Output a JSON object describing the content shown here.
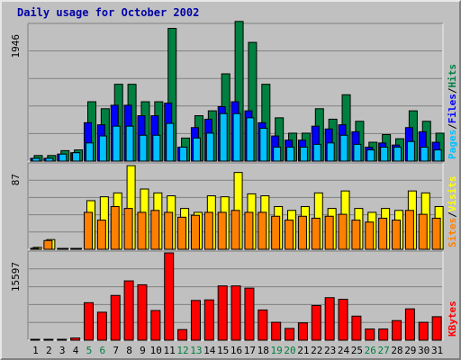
{
  "title": "Daily usage for October 2002",
  "colors": {
    "hits": "#008040",
    "files": "#0000ff",
    "pages": "#00c0ff",
    "visits": "#ffff00",
    "sites": "#ff8000",
    "kbytes": "#ff0000",
    "weekend_day_label": "#008040",
    "weekday_label": "#000000",
    "background": "#c0c0c0"
  },
  "chart_data": [
    {
      "type": "bar",
      "name": "hits-files-pages",
      "legend": [
        "Pages",
        "Files",
        "Hits"
      ],
      "legend_placement": "right",
      "ymax_label": "1946",
      "ylim": [
        0,
        1946
      ],
      "categories": [
        "1",
        "2",
        "3",
        "4",
        "5",
        "6",
        "7",
        "8",
        "9",
        "10",
        "11",
        "12",
        "13",
        "14",
        "15",
        "16",
        "17",
        "18",
        "19",
        "20",
        "21",
        "22",
        "23",
        "24",
        "25",
        "26",
        "27",
        "28",
        "29",
        "30",
        "31"
      ],
      "series": [
        {
          "name": "Hits",
          "values": [
            80,
            80,
            150,
            160,
            850,
            750,
            1100,
            1100,
            850,
            850,
            1900,
            330,
            650,
            720,
            1250,
            2000,
            1700,
            1100,
            620,
            400,
            400,
            750,
            600,
            950,
            570,
            270,
            380,
            320,
            720,
            570,
            400
          ]
        },
        {
          "name": "Files",
          "values": [
            40,
            40,
            100,
            120,
            550,
            520,
            800,
            800,
            650,
            650,
            830,
            200,
            480,
            600,
            780,
            850,
            720,
            550,
            360,
            300,
            300,
            500,
            460,
            520,
            420,
            200,
            260,
            230,
            480,
            420,
            270
          ]
        },
        {
          "name": "Pages",
          "values": [
            40,
            40,
            100,
            120,
            260,
            360,
            500,
            500,
            370,
            370,
            540,
            200,
            330,
            400,
            680,
            680,
            620,
            470,
            200,
            200,
            200,
            240,
            260,
            370,
            240,
            160,
            200,
            200,
            280,
            200,
            160
          ]
        }
      ]
    },
    {
      "type": "bar",
      "name": "visits-sites",
      "legend": [
        "Sites",
        "Visits"
      ],
      "legend_placement": "right",
      "ymax_label": "87",
      "ylim": [
        0,
        87
      ],
      "categories": [
        "1",
        "2",
        "3",
        "4",
        "5",
        "6",
        "7",
        "8",
        "9",
        "10",
        "11",
        "12",
        "13",
        "14",
        "15",
        "16",
        "17",
        "18",
        "19",
        "20",
        "21",
        "22",
        "23",
        "24",
        "25",
        "26",
        "27",
        "28",
        "29",
        "30",
        "31"
      ],
      "series": [
        {
          "name": "Visits",
          "values": [
            2,
            10,
            0,
            0,
            50,
            54,
            58,
            86,
            62,
            58,
            55,
            42,
            38,
            55,
            54,
            79,
            57,
            55,
            44,
            40,
            44,
            58,
            42,
            60,
            42,
            38,
            42,
            40,
            60,
            58,
            44
          ]
        },
        {
          "name": "Sites",
          "values": [
            1,
            9,
            0,
            0,
            38,
            30,
            44,
            42,
            38,
            40,
            38,
            33,
            35,
            38,
            38,
            40,
            38,
            38,
            34,
            30,
            34,
            32,
            34,
            36,
            30,
            28,
            32,
            30,
            40,
            36,
            32
          ]
        }
      ]
    },
    {
      "type": "bar",
      "name": "kbytes",
      "legend": [
        "KBytes"
      ],
      "legend_placement": "right",
      "ymax_label": "15597",
      "ylim": [
        0,
        15597
      ],
      "categories": [
        "1",
        "2",
        "3",
        "4",
        "5",
        "6",
        "7",
        "8",
        "9",
        "10",
        "11",
        "12",
        "13",
        "14",
        "15",
        "16",
        "17",
        "18",
        "19",
        "20",
        "21",
        "22",
        "23",
        "24",
        "25",
        "26",
        "27",
        "28",
        "29",
        "30",
        "31"
      ],
      "series": [
        {
          "name": "KBytes",
          "values": [
            150,
            150,
            150,
            400,
            6700,
            5000,
            8000,
            10600,
            9900,
            5300,
            15597,
            1900,
            7100,
            7200,
            9700,
            9700,
            9300,
            5400,
            3200,
            2100,
            3100,
            6200,
            7600,
            7300,
            4300,
            2000,
            2000,
            3500,
            5600,
            3200,
            4200
          ]
        }
      ]
    }
  ]
}
